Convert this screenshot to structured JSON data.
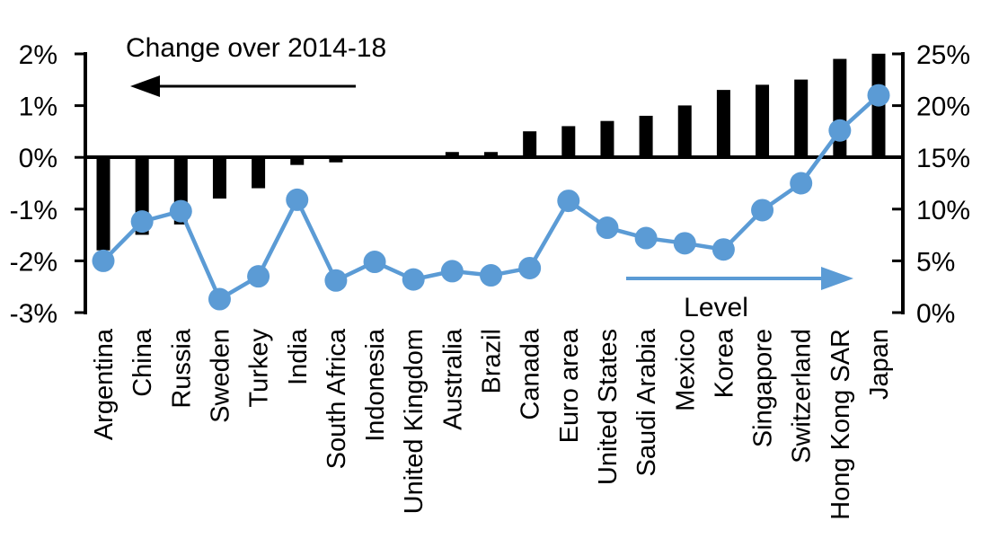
{
  "chart_data": {
    "type": "bar",
    "subtype": "combo-bar-line-dual-axis",
    "categories": [
      "Argentina",
      "China",
      "Russia",
      "Sweden",
      "Turkey",
      "India",
      "South Africa",
      "Indonesia",
      "United Kingdom",
      "Australia",
      "Brazil",
      "Canada",
      "Euro area",
      "United States",
      "Saudi Arabia",
      "Mexico",
      "Korea",
      "Singapore",
      "Switzerland",
      "Hong Kong SAR",
      "Japan"
    ],
    "series": [
      {
        "name": "Change over 2014-18",
        "type": "bar",
        "axis": "left",
        "color": "#000000",
        "values": [
          -1.8,
          -1.5,
          -1.3,
          -0.8,
          -0.6,
          -0.15,
          -0.1,
          0,
          0,
          0.1,
          0.1,
          0.5,
          0.6,
          0.7,
          0.8,
          1.0,
          1.3,
          1.4,
          1.5,
          1.9,
          2.0
        ]
      },
      {
        "name": "Level",
        "type": "line",
        "axis": "right",
        "color": "#5B9BD5",
        "values": [
          5,
          8.8,
          9.8,
          1.3,
          3.5,
          10.9,
          3.1,
          4.9,
          3.2,
          4.0,
          3.6,
          4.3,
          10.8,
          8.2,
          7.2,
          6.7,
          6.1,
          9.9,
          12.5,
          17.6,
          21
        ]
      }
    ],
    "left_axis": {
      "min": -3,
      "max": 2,
      "tick_labels": [
        "2%",
        "1%",
        "0%",
        "-1%",
        "-2%",
        "-3%"
      ]
    },
    "right_axis": {
      "min": 0,
      "max": 25,
      "tick_labels": [
        "25%",
        "20%",
        "15%",
        "10%",
        "5%",
        "0%"
      ]
    },
    "annotations": {
      "bar_arrow_direction": "left",
      "line_arrow_direction": "right"
    },
    "grid": "off",
    "legend_position": "in-plot-annotations"
  }
}
